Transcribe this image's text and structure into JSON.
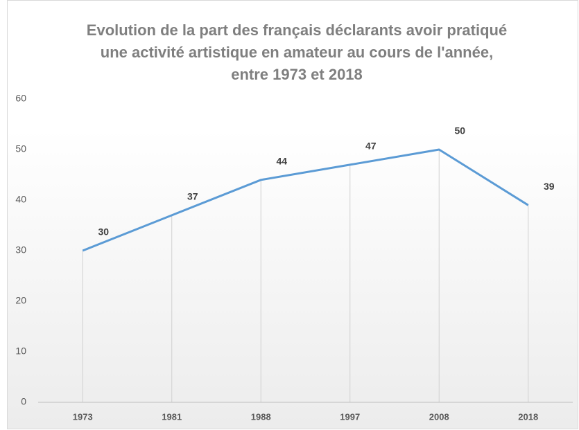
{
  "chart_data": {
    "type": "line",
    "title": [
      "Evolution de la part des français déclarants avoir pratiqué",
      "une activité artistique en amateur au cours de l'année,",
      "entre 1973 et 2018"
    ],
    "categories": [
      "1973",
      "1981",
      "1988",
      "1997",
      "2008",
      "2018"
    ],
    "series": [
      {
        "name": null,
        "color": "#5b9bd5",
        "values": [
          30,
          37,
          44,
          47,
          50,
          39
        ]
      }
    ],
    "ylim": [
      0,
      60
    ],
    "yticks": [
      0,
      10,
      20,
      30,
      40,
      50,
      60
    ],
    "grid": false,
    "drop_lines": true
  }
}
